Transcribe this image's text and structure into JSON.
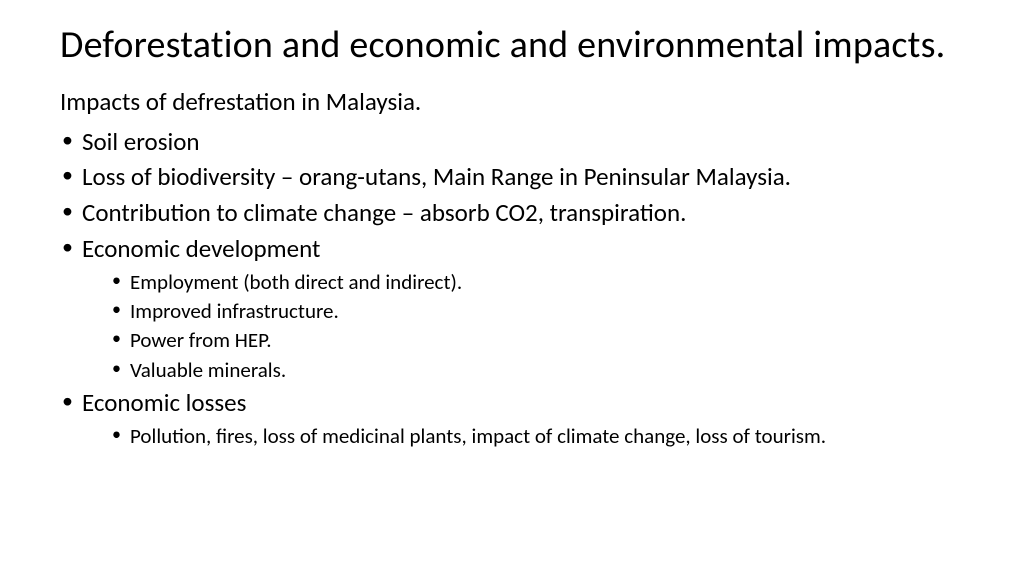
{
  "slide": {
    "background_color": "#ffffff",
    "text_color": "#000000",
    "font_family": "Calibri",
    "title": {
      "text": "Deforestation and economic and environmental impacts.",
      "fontsize": 38,
      "weight": 400
    },
    "subtitle": {
      "text": "Impacts of defrestation in Malaysia.",
      "fontsize": 25,
      "weight": 400
    },
    "bullets": {
      "level1_fontsize": 25,
      "level2_fontsize": 21,
      "bullet_char": "•",
      "items": [
        {
          "text": "Soil erosion"
        },
        {
          "text": "Loss of biodiversity – orang-utans, Main Range in Peninsular Malaysia."
        },
        {
          "text": "Contribution to climate change – absorb CO2, transpiration."
        },
        {
          "text": "Economic development",
          "children": [
            "Employment (both direct and indirect).",
            "Improved infrastructure.",
            "Power from HEP.",
            "Valuable minerals."
          ]
        },
        {
          "text": "Economic losses",
          "children": [
            "Pollution, fires, loss of medicinal plants, impact of climate change, loss of tourism."
          ]
        }
      ]
    }
  }
}
